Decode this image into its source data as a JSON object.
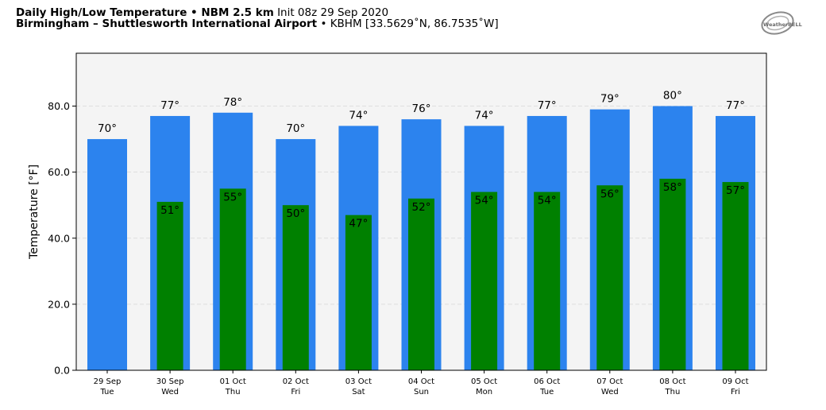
{
  "header": {
    "title_bold": "Daily High/Low Temperature • NBM 2.5 km",
    "init": "Init 08z 29 Sep 2020",
    "location_bold": "Birmingham – Shuttlesworth International Airport",
    "station": "• KBHM [33.5629˚N, 86.7535˚W]"
  },
  "logo": {
    "text": "WeatherBELL"
  },
  "colors": {
    "high": "#2c83ee",
    "low": "#008000",
    "plot_bg": "#f4f4f4"
  },
  "chart_data": {
    "type": "bar",
    "ylabel": "Temperature [°F]",
    "ylim": [
      0,
      96
    ],
    "yticks": [
      0,
      20,
      40,
      60,
      80
    ],
    "ytick_labels": [
      "0.0",
      "20.0",
      "40.0",
      "60.0",
      "80.0"
    ],
    "grid": "horizontal dashed",
    "categories": [
      {
        "date": "29 Sep",
        "day": "Tue"
      },
      {
        "date": "30 Sep",
        "day": "Wed"
      },
      {
        "date": "01 Oct",
        "day": "Thu"
      },
      {
        "date": "02 Oct",
        "day": "Fri"
      },
      {
        "date": "03 Oct",
        "day": "Sat"
      },
      {
        "date": "04 Oct",
        "day": "Sun"
      },
      {
        "date": "05 Oct",
        "day": "Mon"
      },
      {
        "date": "06 Oct",
        "day": "Tue"
      },
      {
        "date": "07 Oct",
        "day": "Wed"
      },
      {
        "date": "08 Oct",
        "day": "Thu"
      },
      {
        "date": "09 Oct",
        "day": "Fri"
      }
    ],
    "series": [
      {
        "key": "high",
        "values": [
          70,
          77,
          78,
          70,
          74,
          76,
          74,
          77,
          79,
          80,
          77
        ]
      },
      {
        "key": "low",
        "values": [
          null,
          51,
          55,
          50,
          47,
          52,
          54,
          54,
          56,
          58,
          57
        ]
      }
    ]
  }
}
